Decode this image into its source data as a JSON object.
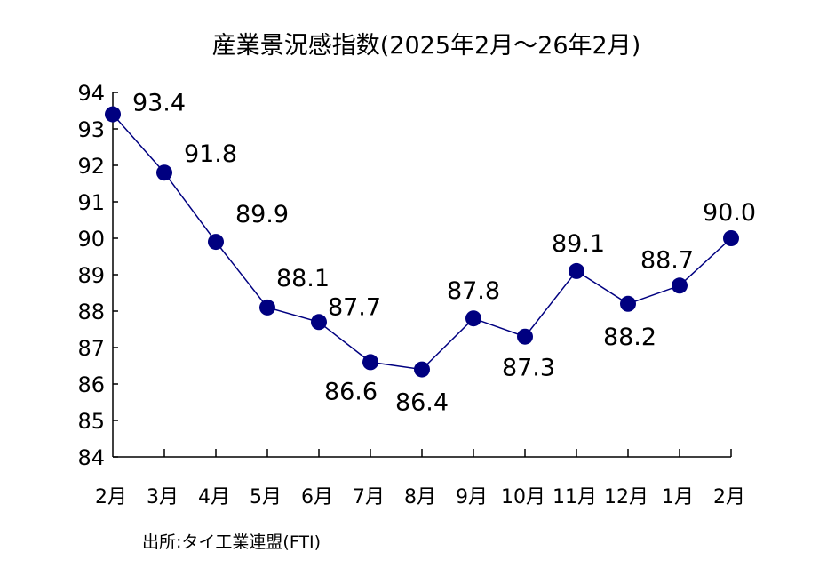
{
  "chart_data": {
    "type": "line",
    "title": "産業景況感指数(2025年2月～26年2月)",
    "categories": [
      "2月",
      "3月",
      "4月",
      "5月",
      "6月",
      "7月",
      "8月",
      "9月",
      "10月",
      "11月",
      "12月",
      "1月",
      "2月"
    ],
    "series": [
      {
        "values": [
          93.4,
          91.8,
          89.9,
          88.1,
          87.7,
          86.6,
          86.4,
          87.8,
          87.3,
          89.1,
          88.2,
          88.7,
          90.0
        ],
        "labels": [
          "93.4",
          "91.8",
          "89.9",
          "88.1",
          "87.7",
          "86.6",
          "86.4",
          "87.8",
          "87.3",
          "89.1",
          "88.2",
          "88.7",
          "90.0"
        ]
      }
    ],
    "ylim": [
      84,
      94
    ],
    "yticks": [
      "84",
      "85",
      "86",
      "87",
      "88",
      "89",
      "90",
      "91",
      "92",
      "93",
      "94"
    ],
    "xlabel": "",
    "ylabel": "",
    "grid": false,
    "line_color": "#000080",
    "marker_color": "#000080"
  },
  "source": "出所:タイ工業連盟(FTI)"
}
